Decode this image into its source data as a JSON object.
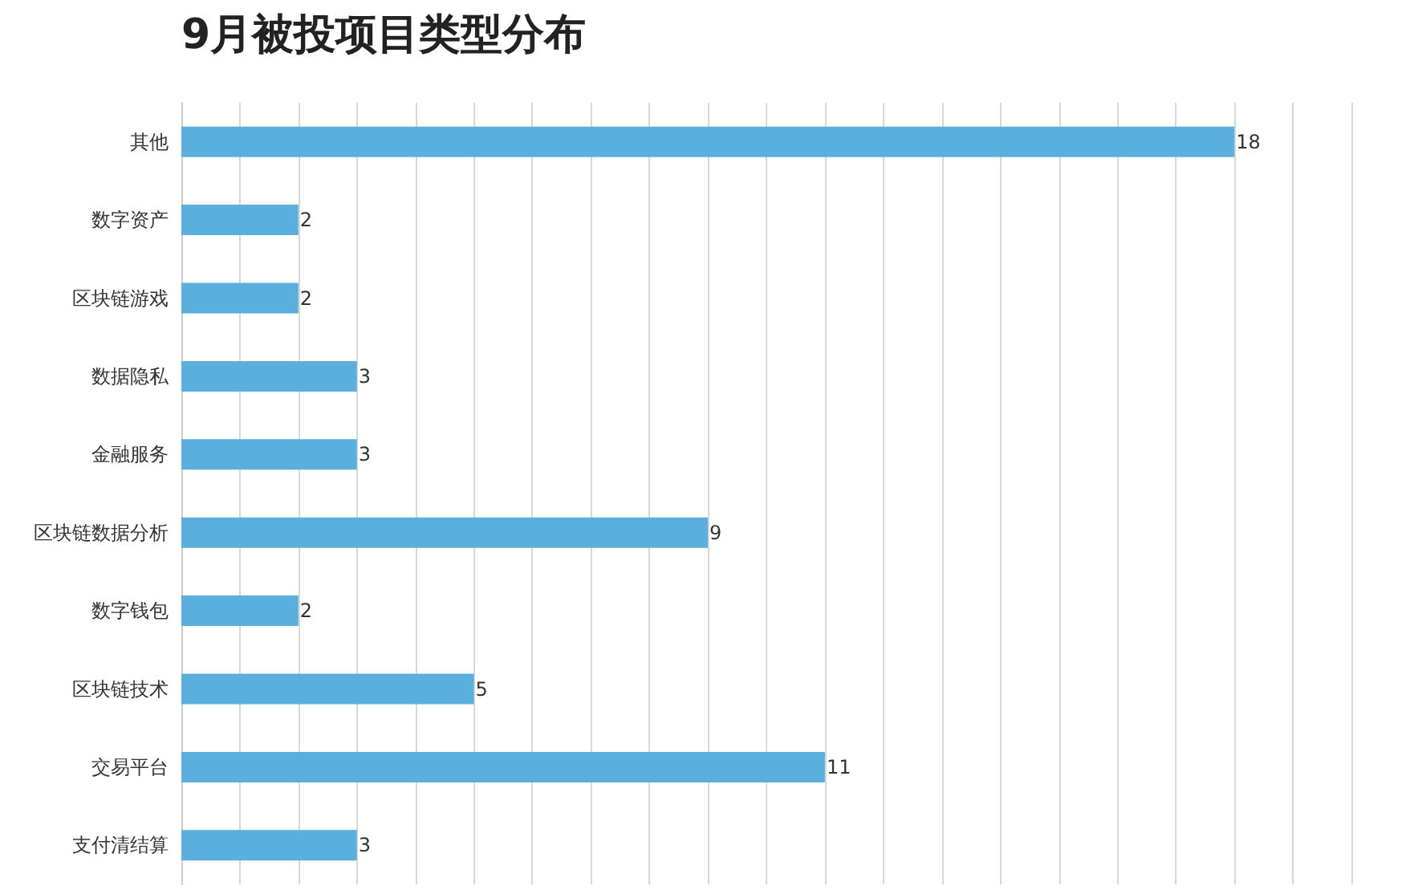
{
  "chart_data": {
    "type": "bar",
    "orientation": "horizontal",
    "title": "9月被投项目类型分布",
    "categories": [
      "其他",
      "数字资产",
      "区块链游戏",
      "数据隐私",
      "金融服务",
      "区块链数据分析",
      "数字钱包",
      "区块链技术",
      "交易平台",
      "支付清结算"
    ],
    "values": [
      18,
      2,
      2,
      3,
      3,
      9,
      2,
      5,
      11,
      3
    ],
    "color": "#5aafdc",
    "data_labels": true,
    "xlim": [
      0,
      20
    ],
    "xticks": [
      {
        "value": 0,
        "label": null
      },
      {
        "value": 1,
        "label": null
      },
      {
        "value": 2,
        "label": null
      },
      {
        "value": 3,
        "label": null
      },
      {
        "value": 4,
        "label": null
      },
      {
        "value": 5,
        "label": null
      },
      {
        "value": 6,
        "label": null
      },
      {
        "value": 7,
        "label": null
      },
      {
        "value": 8,
        "label": null
      },
      {
        "value": 9,
        "label": null
      },
      {
        "value": 10,
        "label": null
      },
      {
        "value": 11,
        "label": null
      },
      {
        "value": 12,
        "label": null
      },
      {
        "value": 13,
        "label": null
      },
      {
        "value": 14,
        "label": null
      },
      {
        "value": 15,
        "label": null
      },
      {
        "value": 16,
        "label": null
      },
      {
        "value": 17,
        "label": null
      },
      {
        "value": 18,
        "label": null
      },
      {
        "value": 19,
        "label": null
      },
      {
        "value": 20,
        "label": null
      }
    ],
    "grid": "x",
    "tick_labels": "y"
  }
}
